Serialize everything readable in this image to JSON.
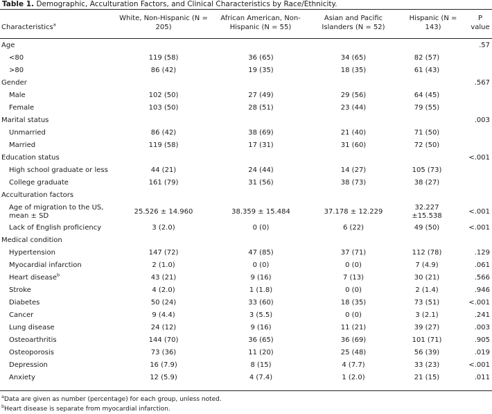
{
  "caption": {
    "label": "Table 1.",
    "text": "Demographic, Acculturation Factors, and Clinical Characteristics by Race/Ethnicity."
  },
  "headers": {
    "characteristics": "Characteristics",
    "characteristics_sup": "a",
    "col1": "White, Non-Hispanic (N = 205)",
    "col2": "African American, Non-Hispanic (N = 55)",
    "col3": "Asian and Pacific Islanders (N = 52)",
    "col4": "Hispanic (N = 143)",
    "col5": "P value"
  },
  "rows": [
    {
      "label": "Age",
      "type": "section",
      "p": ".57"
    },
    {
      "label": "<80",
      "type": "item",
      "c1": "119 (58)",
      "c2": "36 (65)",
      "c3": "34 (65)",
      "c4": "82 (57)",
      "p": ""
    },
    {
      "label": ">80",
      "type": "item",
      "c1": "86 (42)",
      "c2": "19 (35)",
      "c3": "18 (35)",
      "c4": "61 (43)",
      "p": ""
    },
    {
      "label": "Gender",
      "type": "section",
      "p": ".567"
    },
    {
      "label": "Male",
      "type": "item",
      "c1": "102 (50)",
      "c2": "27 (49)",
      "c3": "29 (56)",
      "c4": "64 (45)",
      "p": ""
    },
    {
      "label": "Female",
      "type": "item",
      "c1": "103 (50)",
      "c2": "28 (51)",
      "c3": "23 (44)",
      "c4": "79 (55)",
      "p": ""
    },
    {
      "label": "Marital status",
      "type": "section",
      "p": ".003"
    },
    {
      "label": "Unmarried",
      "type": "item",
      "c1": "86 (42)",
      "c2": "38 (69)",
      "c3": "21 (40)",
      "c4": "71 (50)",
      "p": ""
    },
    {
      "label": "Married",
      "type": "item",
      "c1": "119 (58)",
      "c2": "17 (31)",
      "c3": "31 (60)",
      "c4": "72 (50)",
      "p": ""
    },
    {
      "label": "Education status",
      "type": "section",
      "p": "<.001"
    },
    {
      "label": "High school graduate or less",
      "type": "item",
      "c1": "44 (21)",
      "c2": "24 (44)",
      "c3": "14 (27)",
      "c4": "105 (73)",
      "p": ""
    },
    {
      "label": "College graduate",
      "type": "item",
      "c1": "161 (79)",
      "c2": "31 (56)",
      "c3": "38 (73)",
      "c4": "38 (27)",
      "p": ""
    },
    {
      "label": "Acculturation factors",
      "type": "section",
      "p": ""
    },
    {
      "label": "Age of migration to the US, mean ± SD",
      "type": "item",
      "tall": true,
      "c1": "25.526 ± 14.960",
      "c2": "38.359 ± 15.484",
      "c3": "37.178 ± 12.229",
      "c4": "32.227 ±15.538",
      "p": "<.001"
    },
    {
      "label": "Lack of English proficiency",
      "type": "item",
      "c1": "3 (2.0)",
      "c2": "0 (0)",
      "c3": "6 (22)",
      "c4": "49 (50)",
      "p": "<.001"
    },
    {
      "label": "Medical condition",
      "type": "section",
      "p": ""
    },
    {
      "label": "Hypertension",
      "type": "item",
      "c1": "147 (72)",
      "c2": "47 (85)",
      "c3": "37 (71)",
      "c4": "112 (78)",
      "p": ".129"
    },
    {
      "label": "Myocardial infarction",
      "type": "item",
      "c1": "2 (1.0)",
      "c2": "0 (0)",
      "c3": "0 (0)",
      "c4": "7 (4.9)",
      "p": ".061"
    },
    {
      "label": "Heart disease",
      "sup": "b",
      "type": "item",
      "c1": "43 (21)",
      "c2": "9 (16)",
      "c3": "7 (13)",
      "c4": "30 (21)",
      "p": ".566"
    },
    {
      "label": "Stroke",
      "type": "item",
      "c1": "4 (2.0)",
      "c2": "1 (1.8)",
      "c3": "0 (0)",
      "c4": "2 (1.4)",
      "p": ".946"
    },
    {
      "label": "Diabetes",
      "type": "item",
      "c1": "50 (24)",
      "c2": "33 (60)",
      "c3": "18 (35)",
      "c4": "73 (51)",
      "p": "<.001"
    },
    {
      "label": "Cancer",
      "type": "item",
      "c1": "9 (4.4)",
      "c2": "3 (5.5)",
      "c3": "0 (0)",
      "c4": "3 (2.1)",
      "p": ".241"
    },
    {
      "label": "Lung disease",
      "type": "item",
      "c1": "24 (12)",
      "c2": "9 (16)",
      "c3": "11 (21)",
      "c4": "39 (27)",
      "p": ".003"
    },
    {
      "label": "Osteoarthritis",
      "type": "item",
      "c1": "144 (70)",
      "c2": "36 (65)",
      "c3": "36 (69)",
      "c4": "101 (71)",
      "p": ".905"
    },
    {
      "label": "Osteoporosis",
      "type": "item",
      "c1": "73 (36)",
      "c2": "11 (20)",
      "c3": "25 (48)",
      "c4": "56 (39)",
      "p": ".019"
    },
    {
      "label": "Depression",
      "type": "item",
      "c1": "16 (7.9)",
      "c2": "8 (15)",
      "c3": "4 (7.7)",
      "c4": "33 (23)",
      "p": "<.001"
    },
    {
      "label": "Anxiety",
      "type": "item",
      "c1": "12 (5.9)",
      "c2": "4 (7.4)",
      "c3": "1 (2.0)",
      "c4": "21 (15)",
      "p": ".011"
    }
  ],
  "footnotes": {
    "a_mark": "a",
    "a_text": "Data are given as number (percentage) for each group, unless noted.",
    "b_mark": "b",
    "b_text": "Heart disease is separate from myocardial infarction."
  }
}
